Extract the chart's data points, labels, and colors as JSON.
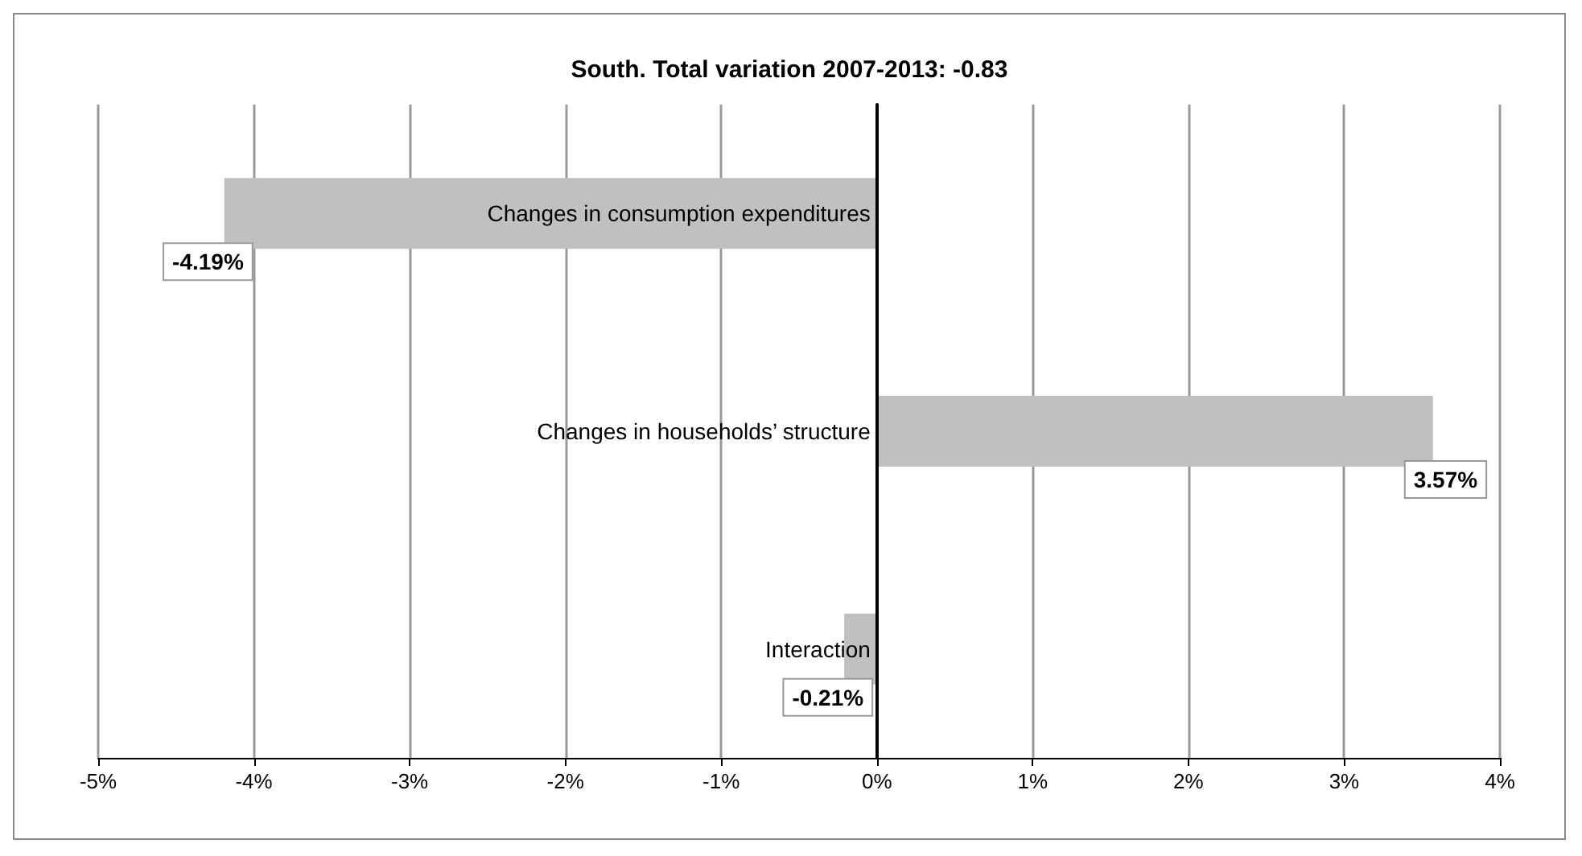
{
  "chart_data": {
    "type": "bar",
    "orientation": "horizontal",
    "title": "South. Total variation 2007-2013: -0.83",
    "categories": [
      "Changes in consumption expenditures",
      "Changes in households’ structure",
      "Interaction"
    ],
    "values": [
      -4.19,
      3.57,
      -0.21
    ],
    "value_labels": [
      "-4.19%",
      "3.57%",
      "-0.21%"
    ],
    "color": "#c0c0c0",
    "xlim": [
      -5,
      4
    ],
    "xticks": [
      {
        "value": -5,
        "label": "-5%"
      },
      {
        "value": -4,
        "label": "-4%"
      },
      {
        "value": -3,
        "label": "-3%"
      },
      {
        "value": -2,
        "label": "-2%"
      },
      {
        "value": -1,
        "label": "-1%"
      },
      {
        "value": 0,
        "label": "0%"
      },
      {
        "value": 1,
        "label": "1%"
      },
      {
        "value": 2,
        "label": "2%"
      },
      {
        "value": 3,
        "label": "3%"
      },
      {
        "value": 4,
        "label": "4%"
      }
    ],
    "grid": "x"
  }
}
